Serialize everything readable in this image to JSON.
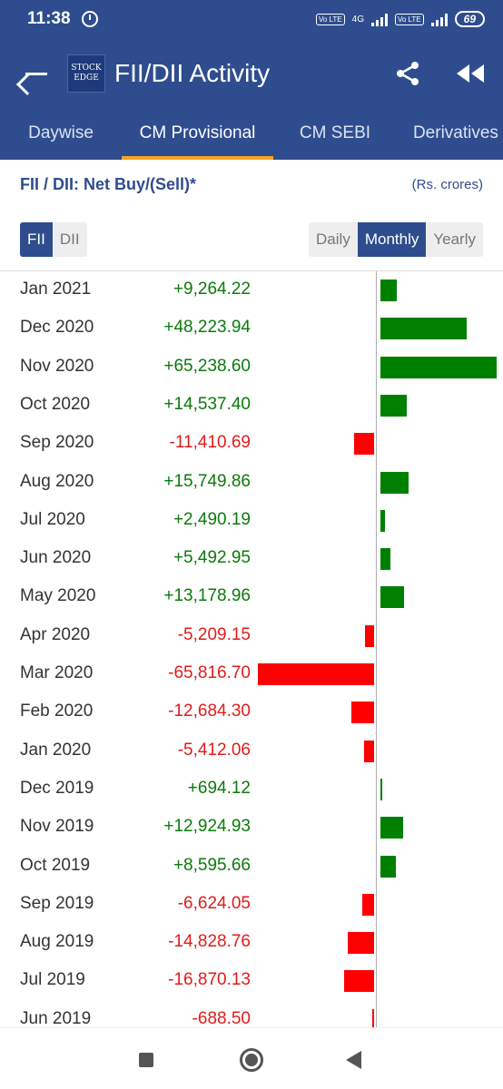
{
  "status": {
    "time": "11:38",
    "net_tag1": "Vo LTE",
    "net_4g": "4G",
    "net_tag2": "Vo LTE",
    "battery": "69"
  },
  "app": {
    "logo_line1": "STOCK",
    "logo_line2": "EDGE",
    "title": "FII/DII Activity"
  },
  "tabs": [
    {
      "label": "Daywise"
    },
    {
      "label": "CM Provisional"
    },
    {
      "label": "CM SEBI"
    },
    {
      "label": "Derivatives"
    }
  ],
  "header": {
    "title": "FII / DII: Net Buy/(Sell)*",
    "units": "(Rs. crores)"
  },
  "toggle_left": {
    "fii": "FII",
    "dii": "DII",
    "selected": "FII"
  },
  "toggle_right": {
    "daily": "Daily",
    "monthly": "Monthly",
    "yearly": "Yearly",
    "selected": "Monthly"
  },
  "colors": {
    "positive": "#0b7a0b",
    "negative": "#e21b1b",
    "bar_positive": "#008000",
    "bar_negative": "#ff0000",
    "accent": "#2f4d8e",
    "tab_indicator": "#f5a623"
  },
  "chart_data": {
    "type": "bar",
    "orientation": "horizontal",
    "categories": [
      "Jan 2021",
      "Dec 2020",
      "Nov 2020",
      "Oct 2020",
      "Sep 2020",
      "Aug 2020",
      "Jul 2020",
      "Jun 2020",
      "May 2020",
      "Apr 2020",
      "Mar 2020",
      "Feb 2020",
      "Jan 2020",
      "Dec 2019",
      "Nov 2019",
      "Oct 2019",
      "Sep 2019",
      "Aug 2019",
      "Jul 2019",
      "Jun 2019"
    ],
    "labels": [
      "+9,264.22",
      "+48,223.94",
      "+65,238.60",
      "+14,537.40",
      "-11,410.69",
      "+15,749.86",
      "+2,490.19",
      "+5,492.95",
      "+13,178.96",
      "-5,209.15",
      "-65,816.70",
      "-12,684.30",
      "-5,412.06",
      "+694.12",
      "+12,924.93",
      "+8,595.66",
      "-6,624.05",
      "-14,828.76",
      "-16,870.13",
      "-688.50"
    ],
    "values": [
      9264.22,
      48223.94,
      65238.6,
      14537.4,
      -11410.69,
      15749.86,
      2490.19,
      5492.95,
      13178.96,
      -5209.15,
      -65816.7,
      -12684.3,
      -5412.06,
      694.12,
      12924.93,
      8595.66,
      -6624.05,
      -14828.76,
      -16870.13,
      -688.5
    ]
  }
}
